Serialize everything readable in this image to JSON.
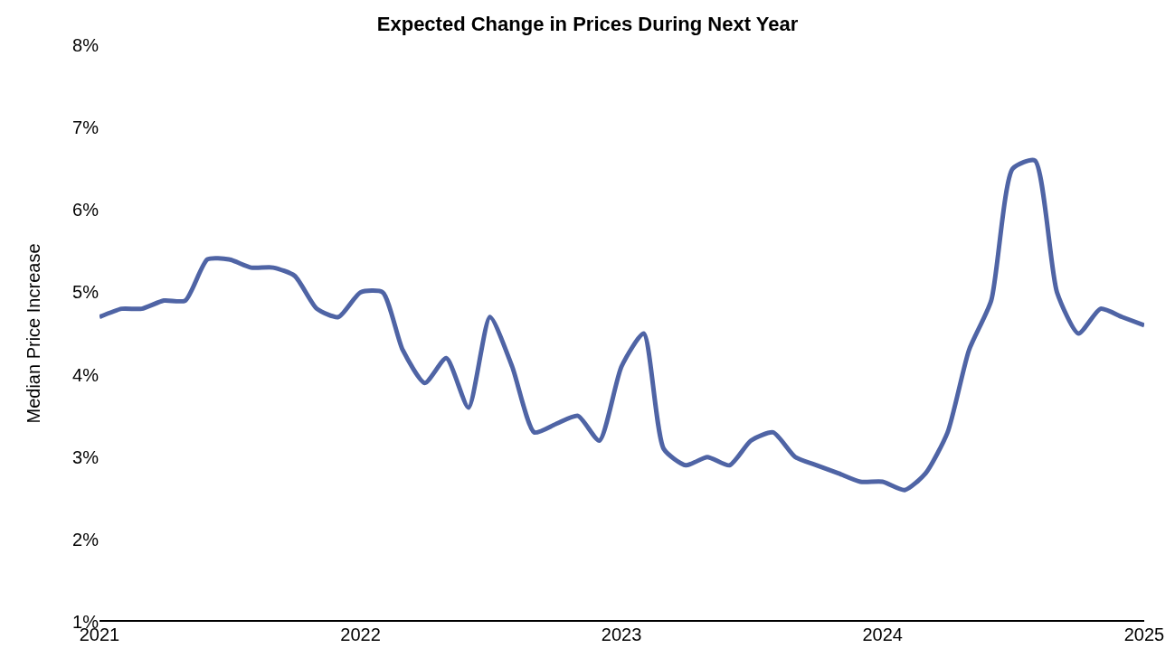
{
  "chart_data": {
    "type": "line",
    "title": "Expected Change in Prices During Next Year",
    "ylabel": "Median Price Increase",
    "x": [
      "2021-01",
      "2021-02",
      "2021-03",
      "2021-04",
      "2021-05",
      "2021-06",
      "2021-07",
      "2021-08",
      "2021-09",
      "2021-10",
      "2021-11",
      "2021-12",
      "2022-01",
      "2022-02",
      "2022-03",
      "2022-04",
      "2022-05",
      "2022-06",
      "2022-07",
      "2022-08",
      "2022-09",
      "2022-10",
      "2022-11",
      "2022-12",
      "2023-01",
      "2023-02",
      "2023-03",
      "2023-04",
      "2023-05",
      "2023-06",
      "2023-07",
      "2023-08",
      "2023-09",
      "2023-10",
      "2023-11",
      "2023-12",
      "2024-01",
      "2024-02",
      "2024-03",
      "2024-04",
      "2024-05",
      "2024-06",
      "2024-07",
      "2024-08",
      "2024-09",
      "2024-10",
      "2024-11",
      "2024-12",
      "2025-01"
    ],
    "series": [
      {
        "color": "#4f64a5",
        "values": [
          4.7,
          4.8,
          4.8,
          4.9,
          4.9,
          5.4,
          5.4,
          5.3,
          5.3,
          5.2,
          4.8,
          4.7,
          5.0,
          5.0,
          4.3,
          3.9,
          4.2,
          3.6,
          4.7,
          4.1,
          3.3,
          3.4,
          3.5,
          3.2,
          4.1,
          4.5,
          3.1,
          2.9,
          3.0,
          2.9,
          3.2,
          3.3,
          3.0,
          2.9,
          2.8,
          2.7,
          2.7,
          2.6,
          2.8,
          3.3,
          4.3,
          4.9,
          6.5,
          6.6,
          5.0,
          4.5,
          4.8,
          4.7,
          4.6
        ]
      }
    ],
    "xlim": [
      "2021-01",
      "2025-01"
    ],
    "xticks": [
      {
        "value": "2021-01",
        "label": "2021"
      },
      {
        "value": "2022-01",
        "label": "2022"
      },
      {
        "value": "2023-01",
        "label": "2023"
      },
      {
        "value": "2024-01",
        "label": "2024"
      },
      {
        "value": "2025-01",
        "label": "2025"
      }
    ],
    "ylim": [
      1,
      8
    ],
    "yticks": [
      {
        "value": 1,
        "label": "1%"
      },
      {
        "value": 2,
        "label": "2%"
      },
      {
        "value": 3,
        "label": "3%"
      },
      {
        "value": 4,
        "label": "4%"
      },
      {
        "value": 5,
        "label": "5%"
      },
      {
        "value": 6,
        "label": "6%"
      },
      {
        "value": 7,
        "label": "7%"
      },
      {
        "value": 8,
        "label": "8%"
      }
    ],
    "marker": "none",
    "line_style": "solid"
  }
}
